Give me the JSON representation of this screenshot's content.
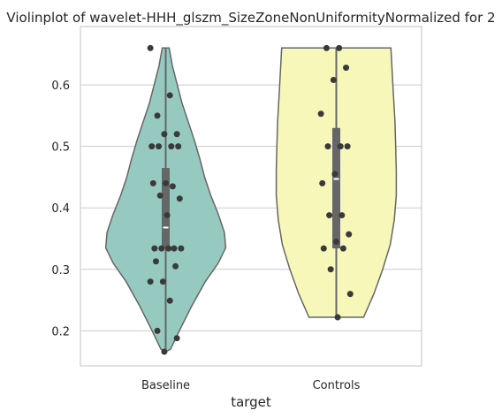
{
  "chart_data": {
    "type": "violin",
    "title": "Violinplot of wavelet-HHH_glszm_SizeZoneNonUniformityNormalized for 2",
    "xlabel": "target",
    "ylabel": "",
    "categories": [
      "Baseline",
      "Controls"
    ],
    "ylim": [
      0.143,
      0.695
    ],
    "yticks": [
      0.2,
      0.3,
      0.4,
      0.5,
      0.6
    ],
    "ytick_labels": [
      "0.2",
      "0.3",
      "0.4",
      "0.5",
      "0.6"
    ],
    "grid": "horizontal",
    "colors": {
      "Baseline": "#96cac0",
      "Controls": "#f8f7ba",
      "outline": "#666666",
      "points": "#3a3a3a",
      "grid": "#cccccc"
    },
    "series": [
      {
        "category": "Baseline",
        "min": 0.166,
        "q1": 0.334,
        "median": 0.368,
        "q3": 0.465,
        "max": 0.66,
        "points": [
          0.66,
          0.583,
          0.55,
          0.52,
          0.52,
          0.5,
          0.5,
          0.5,
          0.5,
          0.44,
          0.44,
          0.435,
          0.42,
          0.415,
          0.388,
          0.334,
          0.334,
          0.334,
          0.334,
          0.334,
          0.313,
          0.305,
          0.28,
          0.28,
          0.249,
          0.2,
          0.188,
          0.166
        ],
        "density": [
          [
            0.166,
            0.0
          ],
          [
            0.17,
            0.07
          ],
          [
            0.2,
            0.2
          ],
          [
            0.24,
            0.38
          ],
          [
            0.28,
            0.58
          ],
          [
            0.31,
            0.77
          ],
          [
            0.335,
            0.88
          ],
          [
            0.36,
            0.86
          ],
          [
            0.39,
            0.77
          ],
          [
            0.42,
            0.66
          ],
          [
            0.45,
            0.57
          ],
          [
            0.48,
            0.5
          ],
          [
            0.51,
            0.42
          ],
          [
            0.54,
            0.33
          ],
          [
            0.57,
            0.24
          ],
          [
            0.6,
            0.17
          ],
          [
            0.63,
            0.1
          ],
          [
            0.66,
            0.05
          ]
        ]
      },
      {
        "category": "Controls",
        "min": 0.222,
        "q1": 0.334,
        "median": 0.447,
        "q3": 0.53,
        "max": 0.66,
        "points": [
          0.66,
          0.66,
          0.628,
          0.608,
          0.553,
          0.5,
          0.5,
          0.5,
          0.455,
          0.44,
          0.388,
          0.388,
          0.357,
          0.345,
          0.334,
          0.334,
          0.3,
          0.26,
          0.222
        ],
        "density": [
          [
            0.222,
            0.4
          ],
          [
            0.26,
            0.55
          ],
          [
            0.3,
            0.68
          ],
          [
            0.34,
            0.79
          ],
          [
            0.38,
            0.85
          ],
          [
            0.42,
            0.88
          ],
          [
            0.46,
            0.88
          ],
          [
            0.5,
            0.87
          ],
          [
            0.54,
            0.86
          ],
          [
            0.58,
            0.84
          ],
          [
            0.62,
            0.82
          ],
          [
            0.66,
            0.8
          ]
        ]
      }
    ]
  }
}
